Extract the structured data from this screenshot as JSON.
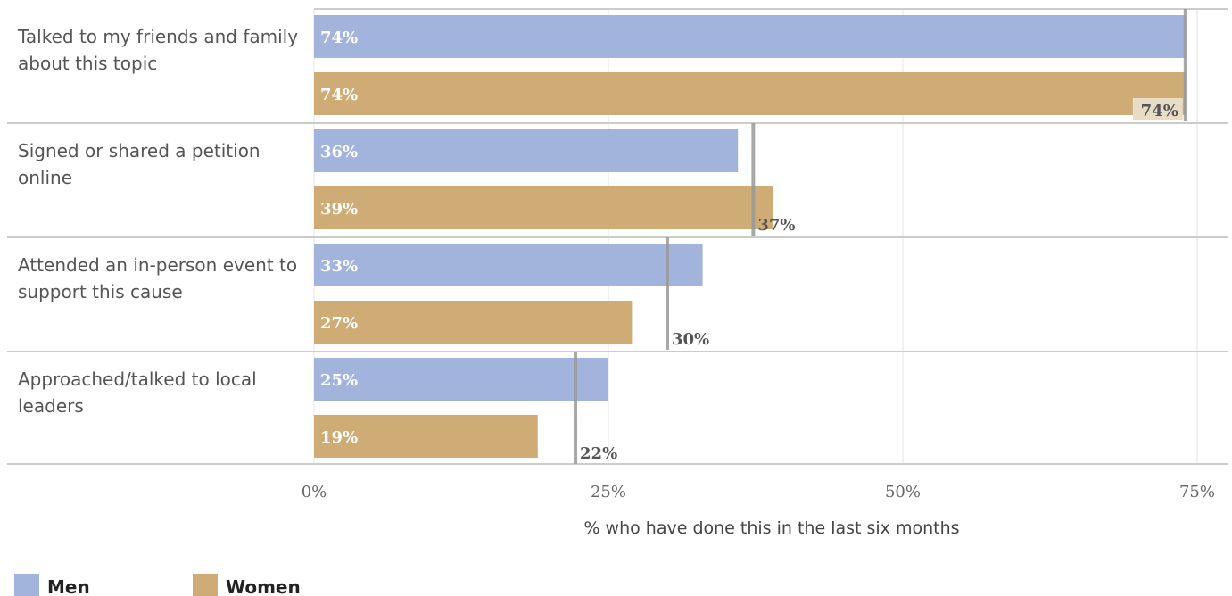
{
  "colors": {
    "men": "#a2b4dc",
    "women": "#cfac76",
    "average": "#999999",
    "grid": "#e6e6e6",
    "separator": "#cccccc"
  },
  "chart_data": {
    "type": "bar",
    "orientation": "horizontal",
    "categories": [
      [
        "Talked to my friends and family",
        "about this topic"
      ],
      [
        "Signed or shared a petition",
        "online"
      ],
      [
        "Attended an in-person event to",
        "support this cause"
      ],
      [
        "Approached/talked to local",
        "leaders"
      ]
    ],
    "series": [
      {
        "name": "Men",
        "values": [
          74,
          36,
          33,
          25
        ],
        "labels": [
          "74%",
          "36%",
          "33%",
          "25%"
        ]
      },
      {
        "name": "Women",
        "values": [
          74,
          39,
          27,
          19
        ],
        "labels": [
          "74%",
          "39%",
          "27%",
          "19%"
        ]
      }
    ],
    "average": {
      "values": [
        74,
        37.3,
        30,
        22.2
      ],
      "labels": [
        "74%",
        "37%",
        "30%",
        "22%"
      ]
    },
    "xlabel": "% who have done this in the last six months",
    "xlim": [
      0,
      77
    ],
    "xticks": [
      0,
      25,
      50,
      75
    ],
    "xtick_labels": [
      "0%",
      "25%",
      "50%",
      "75%"
    ],
    "grid": true,
    "legend_position": "bottom-left"
  }
}
